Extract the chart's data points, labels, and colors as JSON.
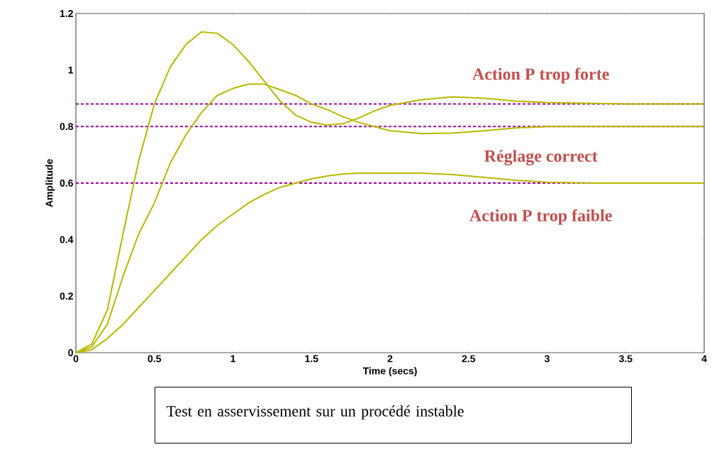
{
  "chart_data": {
    "type": "line",
    "xlabel": "Time (secs)",
    "ylabel": "Amplitude",
    "xlim": [
      0,
      4
    ],
    "ylim": [
      0,
      1.2
    ],
    "xticks": [
      0,
      0.5,
      1,
      1.5,
      2,
      2.5,
      3,
      3.5,
      4
    ],
    "yticks": [
      0,
      0.2,
      0.4,
      0.6,
      0.8,
      1,
      1.2
    ],
    "grid": false,
    "marker": "none",
    "line_style": "solid",
    "series": [
      {
        "color": "#b8b800",
        "x": [
          0,
          0.1,
          0.2,
          0.3,
          0.4,
          0.5,
          0.6,
          0.7,
          0.8,
          0.9,
          1.0,
          1.1,
          1.2,
          1.3,
          1.4,
          1.5,
          1.6,
          1.7,
          1.8,
          1.9,
          2.0,
          2.2,
          2.4,
          2.6,
          2.8,
          3.0,
          3.5,
          4
        ],
        "values": [
          0,
          0.03,
          0.15,
          0.42,
          0.68,
          0.88,
          1.01,
          1.09,
          1.135,
          1.13,
          1.09,
          1.03,
          0.96,
          0.89,
          0.84,
          0.815,
          0.805,
          0.81,
          0.83,
          0.855,
          0.875,
          0.895,
          0.905,
          0.9,
          0.89,
          0.885,
          0.88,
          0.88
        ]
      },
      {
        "color": "#b8b800",
        "x": [
          0,
          0.1,
          0.2,
          0.3,
          0.4,
          0.5,
          0.6,
          0.7,
          0.8,
          0.9,
          1.0,
          1.1,
          1.2,
          1.3,
          1.4,
          1.5,
          1.6,
          1.7,
          1.8,
          1.9,
          2.0,
          2.2,
          2.4,
          2.6,
          2.8,
          3.0,
          4
        ],
        "values": [
          0,
          0.02,
          0.1,
          0.27,
          0.42,
          0.53,
          0.67,
          0.77,
          0.85,
          0.91,
          0.935,
          0.95,
          0.95,
          0.93,
          0.91,
          0.88,
          0.86,
          0.835,
          0.815,
          0.8,
          0.785,
          0.775,
          0.777,
          0.785,
          0.795,
          0.8,
          0.8
        ]
      },
      {
        "color": "#b8b800",
        "x": [
          0,
          0.1,
          0.2,
          0.3,
          0.4,
          0.5,
          0.6,
          0.7,
          0.8,
          0.9,
          1.0,
          1.1,
          1.2,
          1.3,
          1.4,
          1.5,
          1.6,
          1.7,
          1.8,
          2.0,
          2.2,
          2.4,
          2.6,
          2.8,
          3.0,
          3.3,
          4
        ],
        "values": [
          0,
          0.01,
          0.05,
          0.1,
          0.16,
          0.22,
          0.28,
          0.34,
          0.4,
          0.45,
          0.49,
          0.53,
          0.56,
          0.585,
          0.6,
          0.615,
          0.625,
          0.632,
          0.635,
          0.635,
          0.635,
          0.63,
          0.62,
          0.61,
          0.603,
          0.6,
          0.6
        ]
      }
    ],
    "ref_lines": [
      {
        "axis": "y",
        "value": 0.88,
        "color": "#a000a0",
        "line_style": "dashed"
      },
      {
        "axis": "y",
        "value": 0.8,
        "color": "#a000a0",
        "line_style": "dashed"
      },
      {
        "axis": "y",
        "value": 0.6,
        "color": "#a000a0",
        "line_style": "dashed"
      }
    ],
    "annotations": [
      "Action P trop forte",
      "Réglage correct",
      "Action P trop faible",
      "Test en asservissement sur un procédé instable"
    ]
  }
}
